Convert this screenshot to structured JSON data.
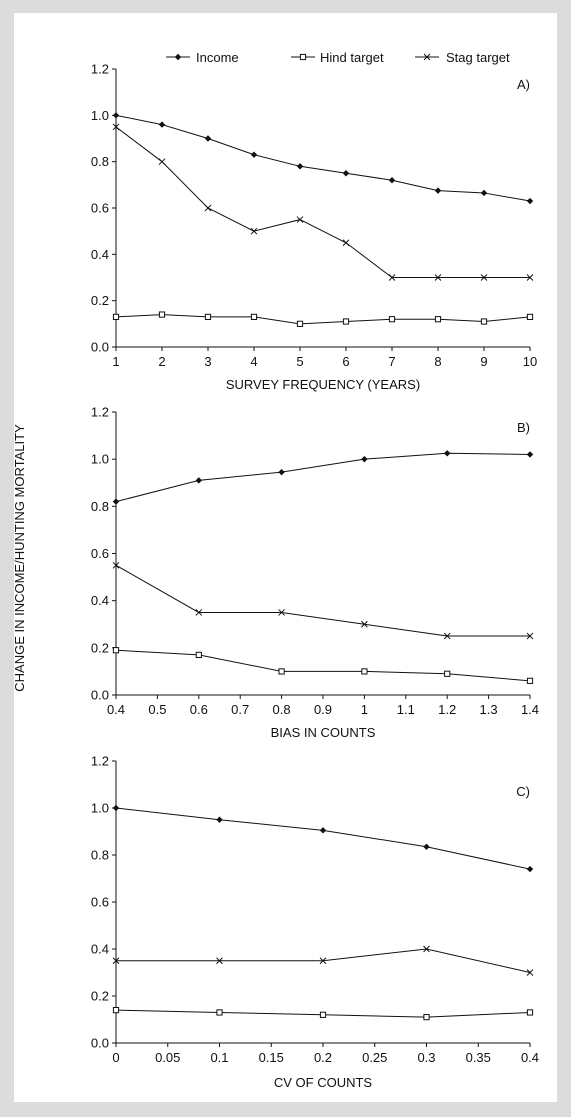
{
  "figure": {
    "shared_ylabel": "CHANGE IN INCOME/HUNTING MORTALITY"
  },
  "legend": {
    "entries": [
      {
        "label": "Income",
        "marker": "diamond"
      },
      {
        "label": "Hind target",
        "marker": "square"
      },
      {
        "label": "Stag target",
        "marker": "cross"
      }
    ]
  },
  "chart_data": [
    {
      "type": "line",
      "panel_label": "A)",
      "xlabel": "SURVEY FREQUENCY (YEARS)",
      "x": [
        1,
        2,
        3,
        4,
        5,
        6,
        7,
        8,
        9,
        10
      ],
      "xticks": [
        "1",
        "2",
        "3",
        "4",
        "5",
        "6",
        "7",
        "8",
        "9",
        "10"
      ],
      "xlim": [
        1,
        10
      ],
      "ylim": [
        0,
        1.2
      ],
      "yticks": [
        "0.0",
        "0.2",
        "0.4",
        "0.6",
        "0.8",
        "1.0",
        "1.2"
      ],
      "series": [
        {
          "name": "Income",
          "marker": "diamond",
          "values": [
            1.0,
            0.96,
            0.9,
            0.83,
            0.78,
            0.75,
            0.72,
            0.675,
            0.665,
            0.63
          ]
        },
        {
          "name": "Hind target",
          "marker": "square",
          "values": [
            0.13,
            0.14,
            0.13,
            0.13,
            0.1,
            0.11,
            0.12,
            0.12,
            0.11,
            0.13
          ]
        },
        {
          "name": "Stag target",
          "marker": "cross",
          "values": [
            0.95,
            0.8,
            0.6,
            0.5,
            0.55,
            0.45,
            0.3,
            0.3,
            0.3,
            0.3
          ]
        }
      ]
    },
    {
      "type": "line",
      "panel_label": "B)",
      "xlabel": "BIAS IN COUNTS",
      "x": [
        0.4,
        0.6,
        0.8,
        1.0,
        1.2,
        1.4
      ],
      "xticks": [
        "0.4",
        "0.5",
        "0.6",
        "0.7",
        "0.8",
        "0.9",
        "1",
        "1.1",
        "1.2",
        "1.3",
        "1.4"
      ],
      "xlim": [
        0.4,
        1.4
      ],
      "ylim": [
        0,
        1.2
      ],
      "yticks": [
        "0.0",
        "0.2",
        "0.4",
        "0.6",
        "0.8",
        "1.0",
        "1.2"
      ],
      "series": [
        {
          "name": "Income",
          "marker": "diamond",
          "values": [
            0.82,
            0.91,
            0.945,
            1.0,
            1.025,
            1.02
          ]
        },
        {
          "name": "Hind target",
          "marker": "square",
          "values": [
            0.19,
            0.17,
            0.1,
            0.1,
            0.09,
            0.06
          ]
        },
        {
          "name": "Stag target",
          "marker": "cross",
          "values": [
            0.55,
            0.35,
            0.35,
            0.3,
            0.25,
            0.25
          ]
        }
      ]
    },
    {
      "type": "line",
      "panel_label": "C)",
      "xlabel": "CV OF COUNTS",
      "x": [
        0,
        0.1,
        0.2,
        0.3,
        0.4
      ],
      "xticks": [
        "0",
        "0.05",
        "0.1",
        "0.15",
        "0.2",
        "0.25",
        "0.3",
        "0.35",
        "0.4"
      ],
      "xlim": [
        0,
        0.4
      ],
      "ylim": [
        0,
        1.2
      ],
      "yticks": [
        "0.0",
        "0.2",
        "0.4",
        "0.6",
        "0.8",
        "1.0",
        "1.2"
      ],
      "series": [
        {
          "name": "Income",
          "marker": "diamond",
          "values": [
            1.0,
            0.95,
            0.905,
            0.835,
            0.74
          ]
        },
        {
          "name": "Hind target",
          "marker": "square",
          "values": [
            0.14,
            0.13,
            0.12,
            0.11,
            0.13
          ]
        },
        {
          "name": "Stag target",
          "marker": "cross",
          "values": [
            0.35,
            0.35,
            0.35,
            0.4,
            0.3
          ]
        }
      ]
    }
  ]
}
